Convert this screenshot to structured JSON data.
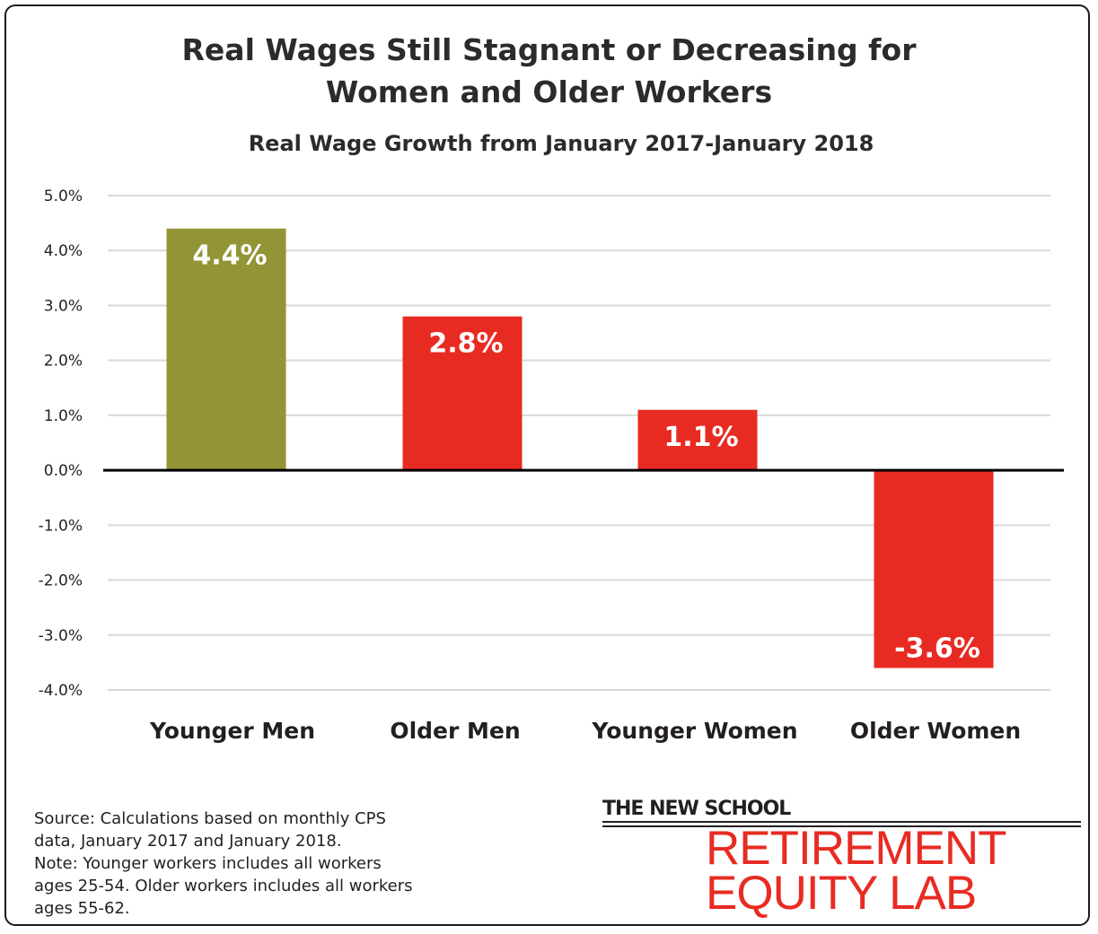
{
  "title_line1": "Real Wages Still Stagnant or Decreasing for",
  "title_line2": "Women and Older Workers",
  "subtitle": "Real Wage Growth from January 2017-January 2018",
  "chart_data": {
    "type": "bar",
    "title": "Real Wage Growth from January 2017-January 2018",
    "categories": [
      "Younger Men",
      "Older Men",
      "Younger Women",
      "Older Women"
    ],
    "values": [
      4.4,
      2.8,
      1.1,
      -3.6
    ],
    "value_labels": [
      "4.4%",
      "2.8%",
      "1.1%",
      "-3.6%"
    ],
    "bar_colors": [
      "#939435",
      "#e82b22",
      "#e82b22",
      "#e82b22"
    ],
    "yticks": [
      "5.0%",
      "4.0%",
      "3.0%",
      "2.0%",
      "1.0%",
      "0.0%",
      "-1.0%",
      "-2.0%",
      "-3.0%",
      "-4.0%"
    ],
    "ylim": [
      -4.0,
      5.0
    ],
    "grid": true,
    "xlabel": "",
    "ylabel": ""
  },
  "source": {
    "line1": "Source: Calculations based on monthly CPS",
    "line2": "data, January 2017 and January 2018.",
    "line3": "Note: Younger workers includes all workers",
    "line4": "ages 25-54. Older workers includes all workers",
    "line5": "ages 55-62."
  },
  "logo": {
    "school": "THE NEW SCHOOL",
    "line1": "RETIREMENT",
    "line2": "EQUITY LAB"
  },
  "colors": {
    "olive": "#939435",
    "red": "#e82b22",
    "grid": "#d9d9d9",
    "text": "#231f20"
  }
}
